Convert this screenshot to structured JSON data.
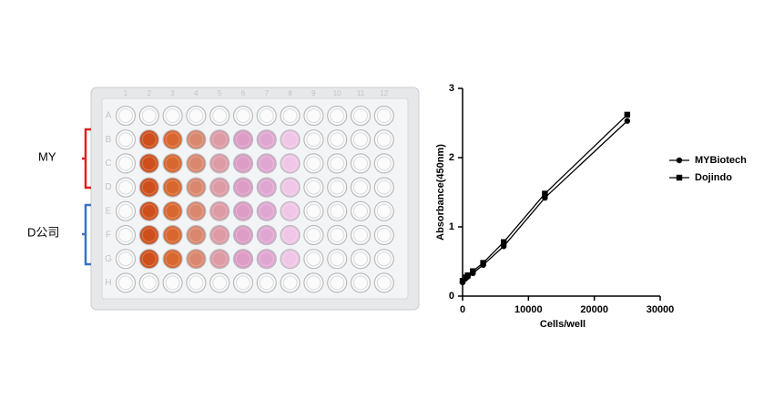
{
  "plate": {
    "labels": [
      "MY",
      "D公司"
    ],
    "rows": [
      "A",
      "B",
      "C",
      "D",
      "E",
      "F",
      "G",
      "H"
    ],
    "columns": [
      "1",
      "2",
      "3",
      "4",
      "5",
      "6",
      "7",
      "8",
      "9",
      "10",
      "11",
      "12"
    ]
  },
  "chart_data": {
    "type": "line",
    "xlabel": "Cells/well",
    "ylabel": "Absorbance(450nm)",
    "x": [
      0,
      390,
      781,
      1562,
      3125,
      6250,
      12500,
      25000
    ],
    "series": [
      {
        "name": "MYBiotech",
        "color": "#000000",
        "marker": "circle",
        "values": [
          0.2,
          0.25,
          0.28,
          0.33,
          0.45,
          0.72,
          1.42,
          2.53
        ]
      },
      {
        "name": "Dojindo",
        "color": "#000000",
        "marker": "square",
        "values": [
          0.22,
          0.27,
          0.3,
          0.36,
          0.48,
          0.78,
          1.48,
          2.62
        ]
      }
    ],
    "xlim": [
      0,
      30000
    ],
    "xticks": [
      0,
      10000,
      20000,
      30000
    ],
    "ylim": [
      0,
      3
    ],
    "yticks": [
      0,
      1,
      2,
      3
    ],
    "legend": "right"
  }
}
